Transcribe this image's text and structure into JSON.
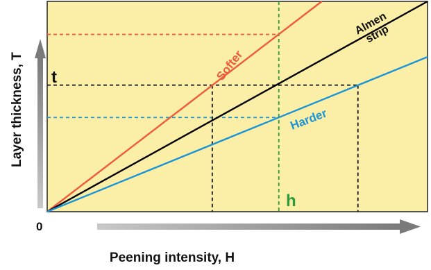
{
  "chart_data": {
    "type": "line",
    "title": "",
    "xlabel": "Peening intensity, H",
    "ylabel": "Layer thickness, T",
    "origin_label": "0",
    "xlim": [
      0,
      10
    ],
    "ylim": [
      0,
      10
    ],
    "grid": false,
    "series": [
      {
        "name": "Softer",
        "color": "#ee5a3a",
        "x": [
          0,
          7.22
        ],
        "y": [
          0,
          10
        ]
      },
      {
        "name": "Almen strip",
        "color": "#000000",
        "x": [
          0,
          10
        ],
        "y": [
          0,
          10
        ]
      },
      {
        "name": "Harder",
        "color": "#1a94d6",
        "x": [
          0,
          10
        ],
        "y": [
          0,
          7.36
        ]
      }
    ],
    "annotations": {
      "t_label": "t",
      "h_label": "h",
      "t_value": 6.02,
      "h_value": 6.09,
      "softer_at_h": 8.43,
      "harder_at_h": 4.48,
      "softer_x_at_t": 4.34,
      "harder_x_at_t": 8.17
    },
    "series_labels": {
      "softer": "Softer",
      "almen_line1": "Almen",
      "almen_line2": "strip",
      "harder": "Harder"
    },
    "colors": {
      "background": "#fbeea6",
      "softer": "#ee5a3a",
      "almen": "#000000",
      "harder": "#1a94d6",
      "h_line": "#2a9a3a",
      "arrow": "#8a8a8a"
    }
  }
}
